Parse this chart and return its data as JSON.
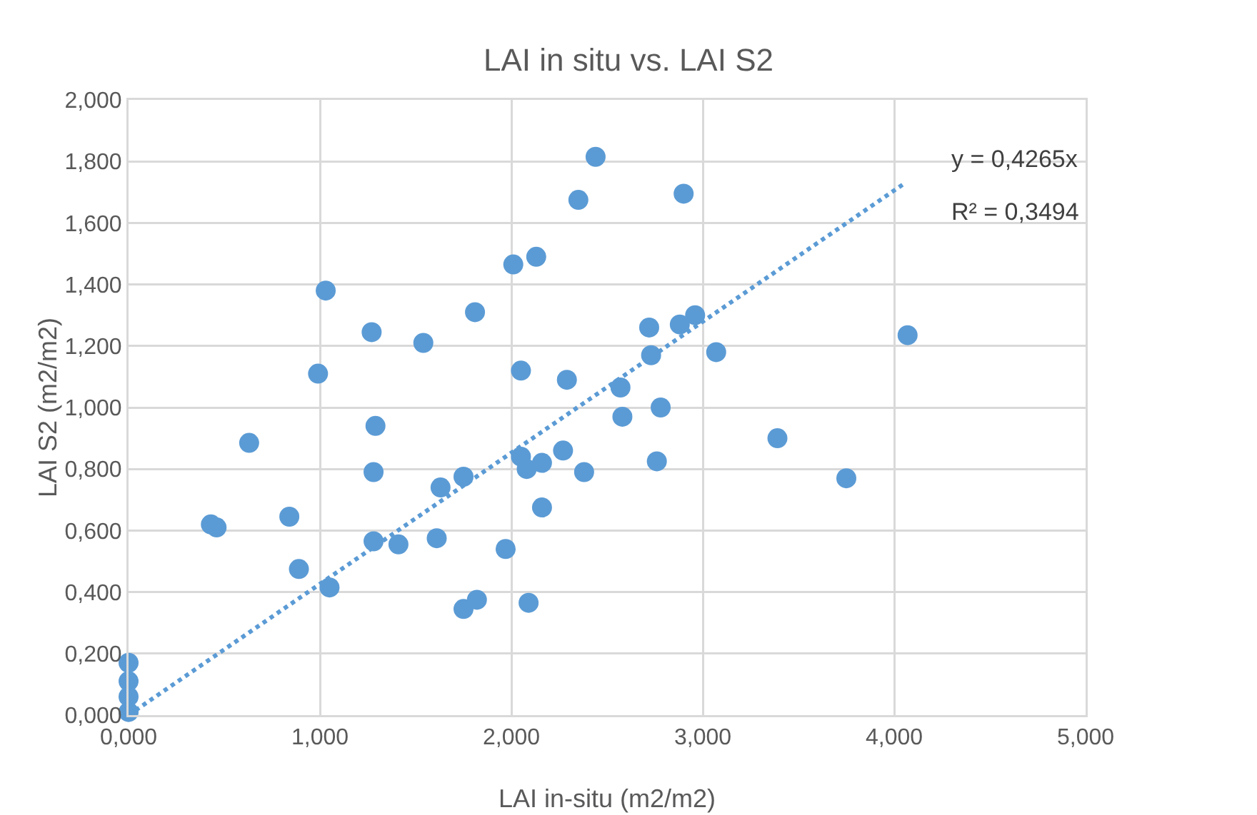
{
  "chart_data": {
    "type": "scatter",
    "title": "LAI in situ vs. LAI S2",
    "xlabel": "LAI in-situ (m2/m2)",
    "ylabel": "LAI S2 (m2/m2)",
    "xlim": [
      0,
      5
    ],
    "xticks": [
      {
        "value": 0,
        "label": "0,000"
      },
      {
        "value": 1,
        "label": "1,000"
      },
      {
        "value": 2,
        "label": "2,000"
      },
      {
        "value": 3,
        "label": "3,000"
      },
      {
        "value": 4,
        "label": "4,000"
      },
      {
        "value": 5,
        "label": "5,000"
      }
    ],
    "ylim": [
      0,
      2
    ],
    "yticks": [
      {
        "value": 0,
        "label": "0,000"
      },
      {
        "value": 0.2,
        "label": "0,200"
      },
      {
        "value": 0.4,
        "label": "0,400"
      },
      {
        "value": 0.6,
        "label": "0,600"
      },
      {
        "value": 0.8,
        "label": "0,800"
      },
      {
        "value": 1,
        "label": "1,000"
      },
      {
        "value": 1.2,
        "label": "1,200"
      },
      {
        "value": 1.4,
        "label": "1,400"
      },
      {
        "value": 1.6,
        "label": "1,600"
      },
      {
        "value": 1.8,
        "label": "1,800"
      },
      {
        "value": 2,
        "label": "2,000"
      }
    ],
    "grid": true,
    "marker": "circle",
    "series": [
      {
        "color": "#5b9bd5",
        "x": [
          0,
          0,
          0,
          0,
          0.43,
          0.46,
          0.63,
          0.84,
          0.89,
          0.99,
          1.03,
          1.05,
          1.27,
          1.29,
          1.28,
          1.28,
          1.41,
          1.54,
          1.61,
          1.63,
          1.75,
          1.81,
          1.75,
          1.82,
          1.97,
          2.01,
          2.05,
          2.13,
          2.05,
          2.08,
          2.16,
          2.09,
          2.16,
          2.27,
          2.29,
          2.35,
          2.44,
          2.38,
          2.57,
          2.58,
          2.72,
          2.73,
          2.76,
          2.78,
          2.88,
          2.9,
          2.96,
          3.07,
          3.39,
          3.75,
          4.07
        ],
        "values": [
          0.01,
          0.06,
          0.11,
          0.17,
          0.62,
          0.61,
          0.885,
          0.645,
          0.475,
          1.11,
          1.38,
          0.415,
          1.245,
          0.94,
          0.79,
          0.565,
          0.555,
          1.21,
          0.575,
          0.74,
          0.775,
          1.31,
          0.345,
          0.375,
          0.54,
          1.465,
          1.12,
          1.49,
          0.84,
          0.8,
          0.82,
          0.365,
          0.675,
          0.86,
          1.09,
          1.675,
          1.815,
          0.79,
          1.065,
          0.97,
          1.26,
          1.17,
          0.825,
          1.0,
          1.27,
          1.695,
          1.3,
          1.18,
          0.9,
          0.77,
          1.235
        ]
      },
      {
        "type": "line",
        "color": "#5b9bd5",
        "line_style": "dotted",
        "marker": "none",
        "x": [
          0,
          4.05
        ],
        "values": [
          0,
          1.727
        ]
      }
    ],
    "annotations": [
      "y = 0,4265x",
      "R² = 0,3494"
    ]
  }
}
